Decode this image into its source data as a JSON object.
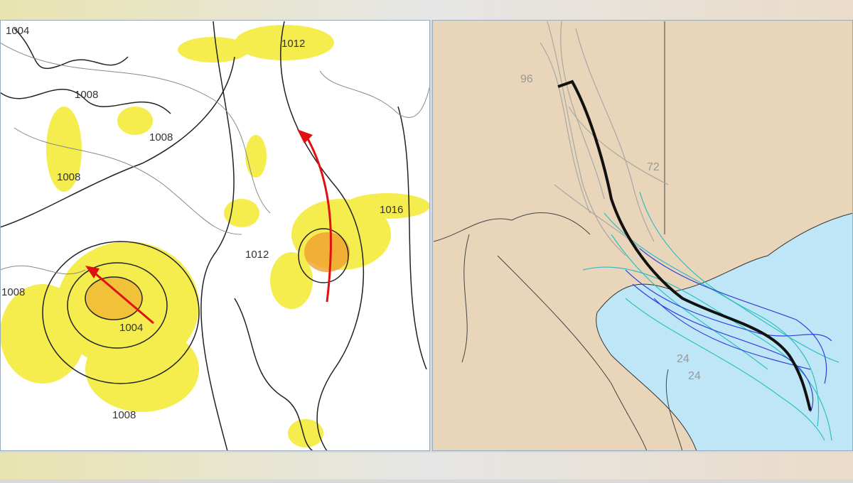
{
  "left_map": {
    "isobar_labels": [
      "1004",
      "1012",
      "1008",
      "1008",
      "1008",
      "1016",
      "1012",
      "1008",
      "1004",
      "1008"
    ]
  },
  "right_map": {
    "track_labels": [
      "96",
      "72",
      "24",
      "24"
    ]
  }
}
